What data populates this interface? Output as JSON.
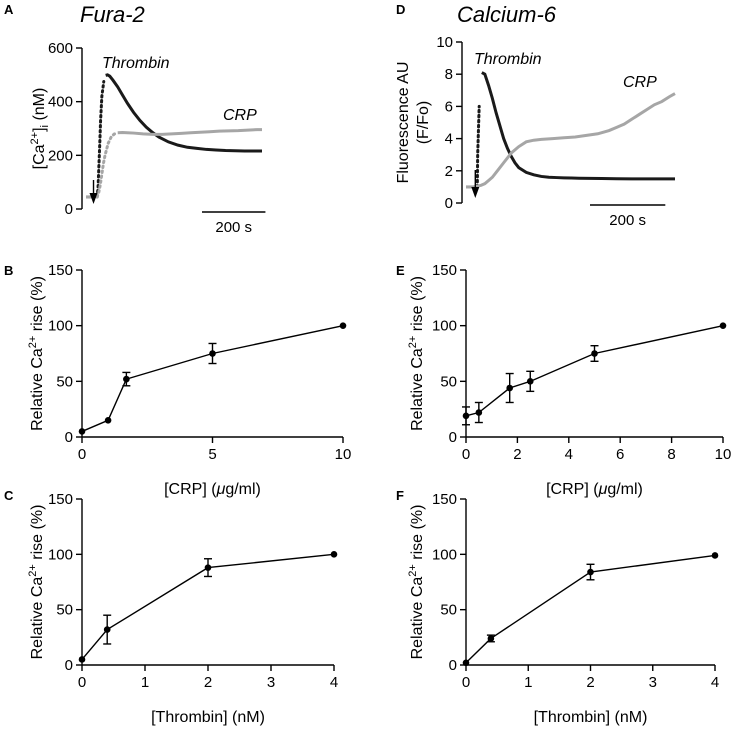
{
  "colors": {
    "thrombin": "#1a1a1a",
    "crp": "#a6a6a6",
    "axis": "#000000"
  },
  "chart_data": [
    {
      "id": "A",
      "type": "line",
      "title": "Fura-2",
      "ylabel_parts": [
        "[Ca",
        "2+",
        "]",
        "i",
        " (nM)"
      ],
      "ylim": [
        0,
        600
      ],
      "yticks": [
        0,
        200,
        400,
        600
      ],
      "series": [
        {
          "name": "Thrombin",
          "color": "thrombin",
          "x": [
            0,
            20,
            35,
            38,
            40,
            43,
            46,
            50,
            56,
            62,
            68,
            75,
            85,
            100,
            115,
            130,
            150,
            170,
            190,
            210,
            230,
            260,
            290,
            320,
            350,
            380,
            410,
            440,
            470,
            500,
            530,
            555
          ],
          "y": [
            45,
            45,
            45,
            80,
            140,
            230,
            330,
            420,
            475,
            498,
            500,
            495,
            480,
            455,
            425,
            395,
            360,
            330,
            305,
            285,
            268,
            250,
            238,
            230,
            226,
            222,
            220,
            218,
            217,
            216,
            216,
            216
          ],
          "dot_until": 60
        },
        {
          "name": "CRP",
          "color": "crp",
          "x": [
            0,
            20,
            35,
            40,
            45,
            50,
            55,
            60,
            70,
            80,
            90,
            100,
            115,
            130,
            150,
            180,
            210,
            240,
            270,
            300,
            330,
            360,
            390,
            420,
            450,
            480,
            510,
            540,
            555
          ],
          "y": [
            45,
            45,
            45,
            60,
            90,
            130,
            170,
            200,
            245,
            270,
            280,
            284,
            285,
            284,
            283,
            280,
            278,
            278,
            280,
            282,
            284,
            286,
            288,
            290,
            291,
            292,
            294,
            296,
            296
          ],
          "dot_until": 100
        }
      ],
      "annotations": [
        {
          "text": "Thrombin",
          "series": "Thrombin"
        },
        {
          "text": "CRP",
          "series": "CRP"
        }
      ],
      "scalebar": {
        "label": "200 s",
        "seconds": 200
      }
    },
    {
      "id": "D",
      "type": "line",
      "title": "Calcium-6",
      "ylabel_lines": [
        "Fluorescence AU",
        "(F/Fo)"
      ],
      "ylim": [
        0,
        10
      ],
      "yticks": [
        0,
        2,
        4,
        6,
        8,
        10
      ],
      "series": [
        {
          "name": "Thrombin",
          "color": "thrombin",
          "x": [
            0,
            20,
            30,
            31,
            35,
            42,
            50,
            60,
            70,
            80,
            90,
            100,
            110,
            120,
            130,
            140,
            160,
            180,
            200,
            220,
            240,
            260,
            280,
            300,
            330,
            360,
            400,
            440,
            480,
            520,
            555
          ],
          "y": [
            1.0,
            1.0,
            1.0,
            3.0,
            6.0,
            8.1,
            8.0,
            7.3,
            6.5,
            5.6,
            4.8,
            4.0,
            3.4,
            2.9,
            2.5,
            2.2,
            1.9,
            1.75,
            1.65,
            1.6,
            1.58,
            1.56,
            1.55,
            1.54,
            1.53,
            1.52,
            1.51,
            1.5,
            1.5,
            1.5,
            1.5
          ],
          "dot_until": 40
        },
        {
          "name": "CRP",
          "color": "crp",
          "x": [
            0,
            20,
            30,
            40,
            50,
            60,
            70,
            80,
            100,
            120,
            140,
            160,
            180,
            200,
            230,
            260,
            290,
            320,
            350,
            380,
            400,
            420,
            440,
            460,
            480,
            500,
            520,
            540,
            555
          ],
          "y": [
            1.0,
            1.0,
            1.05,
            1.1,
            1.2,
            1.4,
            1.6,
            1.9,
            2.5,
            3.1,
            3.5,
            3.8,
            3.9,
            3.95,
            4.0,
            4.05,
            4.1,
            4.2,
            4.3,
            4.5,
            4.7,
            4.9,
            5.2,
            5.5,
            5.8,
            6.1,
            6.3,
            6.6,
            6.8
          ],
          "dot_until": 0
        }
      ],
      "annotations": [
        {
          "text": "Thrombin",
          "series": "Thrombin"
        },
        {
          "text": "CRP",
          "series": "CRP"
        }
      ],
      "scalebar": {
        "label": "200 s",
        "seconds": 200
      }
    },
    {
      "id": "B",
      "type": "line",
      "xlim": [
        0,
        10
      ],
      "xticks": [
        0,
        5,
        10
      ],
      "ylim": [
        0,
        150
      ],
      "yticks": [
        0,
        50,
        100,
        150
      ],
      "xlabel_parts": [
        "[CRP] (",
        "μ",
        "g/ml)"
      ],
      "ylabel_parts": [
        "Relative Ca",
        "2+",
        " rise (%)"
      ],
      "x": [
        0,
        1,
        1.7,
        5,
        10
      ],
      "y": [
        5,
        15,
        52,
        75,
        100
      ],
      "err": [
        0,
        0,
        6,
        9,
        0
      ]
    },
    {
      "id": "E",
      "type": "line",
      "xlim": [
        0,
        10
      ],
      "xticks": [
        0,
        2,
        4,
        6,
        8,
        10
      ],
      "ylim": [
        0,
        150
      ],
      "yticks": [
        0,
        50,
        100,
        150
      ],
      "xlabel_parts": [
        "[CRP] (",
        "μ",
        "g/ml)"
      ],
      "ylabel_parts": [
        "Relative Ca",
        "2+",
        " rise (%)"
      ],
      "x": [
        0,
        0.5,
        1.7,
        2.5,
        5,
        10
      ],
      "y": [
        19,
        22,
        44,
        50,
        75,
        100
      ],
      "err": [
        8,
        9,
        13,
        9,
        7,
        0
      ]
    },
    {
      "id": "C",
      "type": "line",
      "xlim": [
        0,
        4
      ],
      "xticks": [
        0,
        1,
        2,
        3,
        4
      ],
      "ylim": [
        0,
        150
      ],
      "yticks": [
        0,
        50,
        100,
        150
      ],
      "xlabel_parts": [
        "[Thrombin] (nM)"
      ],
      "ylabel_parts": [
        "Relative Ca",
        "2+",
        " rise (%)"
      ],
      "x": [
        0,
        0.4,
        2,
        4
      ],
      "y": [
        5,
        32,
        88,
        100
      ],
      "err": [
        0,
        13,
        8,
        0
      ]
    },
    {
      "id": "F",
      "type": "line",
      "xlim": [
        0,
        4
      ],
      "xticks": [
        0,
        1,
        2,
        3,
        4
      ],
      "ylim": [
        0,
        150
      ],
      "yticks": [
        0,
        50,
        100,
        150
      ],
      "xlabel_parts": [
        "[Thrombin] (nM)"
      ],
      "ylabel_parts": [
        "Relative Ca",
        "2+",
        " rise (%)"
      ],
      "x": [
        0,
        0.4,
        2,
        4
      ],
      "y": [
        2,
        24,
        84,
        99
      ],
      "err": [
        0,
        3,
        7,
        0
      ]
    }
  ]
}
